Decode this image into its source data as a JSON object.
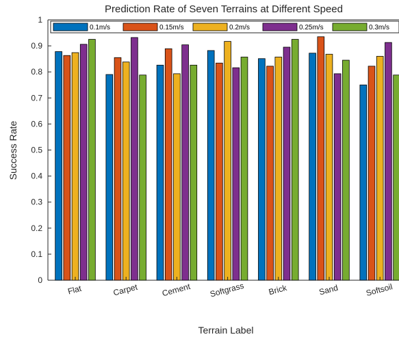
{
  "chart_data": {
    "type": "bar",
    "title": "Prediction Rate of Seven Terrains at Different Speed",
    "xlabel": "Terrain Label",
    "ylabel": "Success Rate",
    "ylim": [
      0,
      1
    ],
    "yticks": [
      "0",
      "0.1",
      "0.2",
      "0.3",
      "0.4",
      "0.5",
      "0.6",
      "0.7",
      "0.8",
      "0.9",
      "1"
    ],
    "categories": [
      "Flat",
      "Carpet",
      "Cement",
      "Softgrass",
      "Brick",
      "Sand",
      "Softsoil"
    ],
    "legend_position": "top",
    "grid": false,
    "series": [
      {
        "name": "0.1m/s",
        "color": "#0072BD",
        "values": [
          0.878,
          0.79,
          0.826,
          0.882,
          0.851,
          0.872,
          0.75
        ]
      },
      {
        "name": "0.15m/s",
        "color": "#D95319",
        "values": [
          0.863,
          0.855,
          0.889,
          0.834,
          0.822,
          0.935,
          0.822
        ]
      },
      {
        "name": "0.2m/s",
        "color": "#EDB120",
        "values": [
          0.874,
          0.838,
          0.793,
          0.917,
          0.857,
          0.868,
          0.86
        ]
      },
      {
        "name": "0.25m/s",
        "color": "#7E2F8E",
        "values": [
          0.906,
          0.932,
          0.904,
          0.816,
          0.895,
          0.793,
          0.913
        ]
      },
      {
        "name": "0.3m/s",
        "color": "#77AC30",
        "values": [
          0.925,
          0.788,
          0.826,
          0.857,
          0.925,
          0.845,
          0.788
        ]
      }
    ]
  }
}
